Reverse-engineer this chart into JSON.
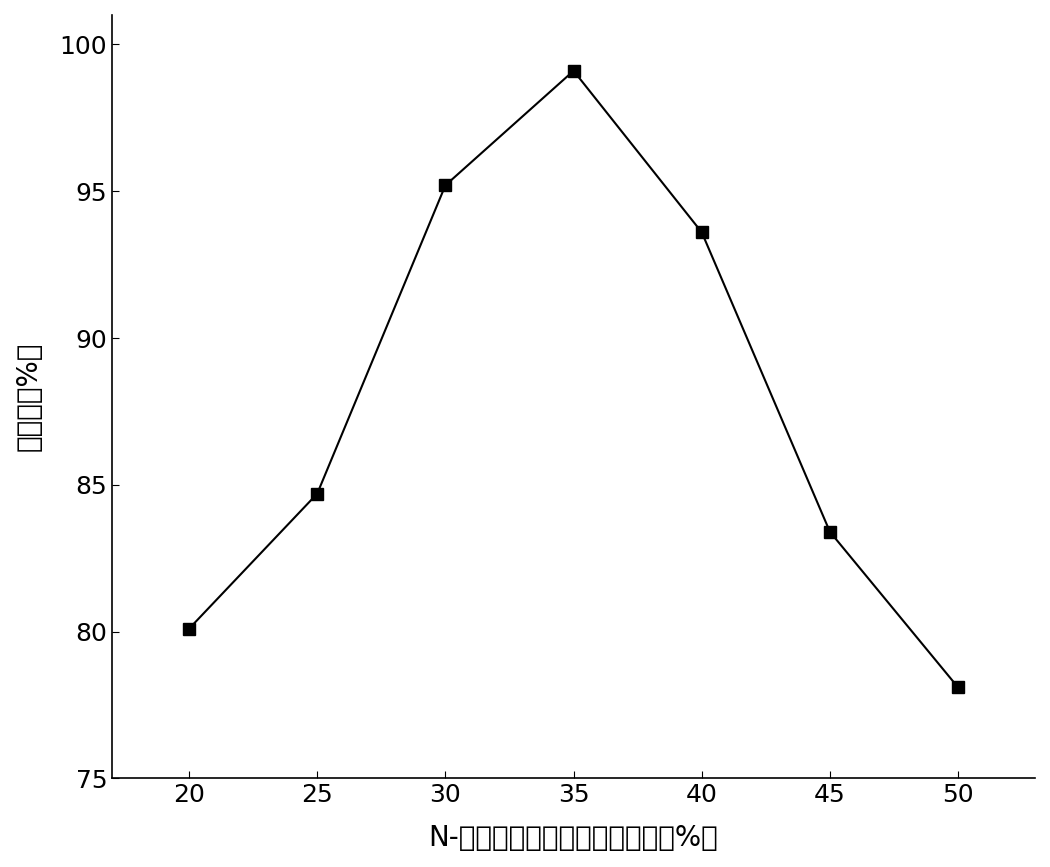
{
  "x": [
    20,
    25,
    30,
    35,
    40,
    45,
    50
  ],
  "y": [
    80.1,
    84.7,
    95.2,
    99.1,
    93.6,
    83.4,
    78.1
  ],
  "xlabel": "N-乙基呀啊碔酸盐的质量分数（%）",
  "ylabel": "萨取率（%）",
  "xlim": [
    17,
    53
  ],
  "ylim": [
    75,
    101
  ],
  "xticks": [
    20,
    25,
    30,
    35,
    40,
    45,
    50
  ],
  "yticks": [
    75,
    80,
    85,
    90,
    95,
    100
  ],
  "line_color": "#000000",
  "marker": "s",
  "marker_color": "#000000",
  "marker_size": 8,
  "line_width": 1.5,
  "background_color": "#ffffff",
  "xlabel_fontsize": 20,
  "ylabel_fontsize": 20,
  "tick_fontsize": 18
}
